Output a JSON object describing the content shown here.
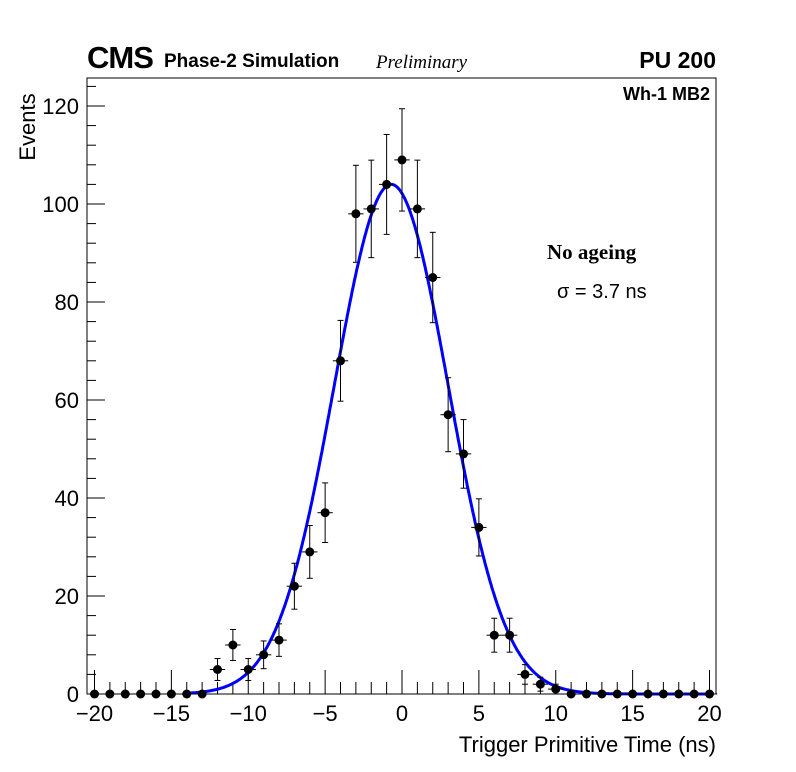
{
  "header": {
    "experiment": "CMS",
    "subtitle": "Phase-2 Simulation",
    "status": "Preliminary",
    "pileup": "PU 200",
    "station": "Wh-1 MB2"
  },
  "annotations": {
    "condition": "No ageing",
    "sigma": "σ = 3.7 ns"
  },
  "colors": {
    "fit": "#0000ff",
    "points": "#000000"
  },
  "chart_data": {
    "type": "scatter",
    "xlabel": "Trigger Primitive Time (ns)",
    "ylabel": "Events",
    "xlim": [
      -20,
      20
    ],
    "ylim": [
      0,
      126
    ],
    "xticks": [
      -20,
      -15,
      -10,
      -5,
      0,
      5,
      10,
      15,
      20
    ],
    "xtick_labels": [
      "−20",
      "−15",
      "−10",
      "−5",
      "0",
      "5",
      "10",
      "15",
      "20"
    ],
    "yticks": [
      0,
      20,
      40,
      60,
      80,
      100,
      120
    ],
    "ytick_labels": [
      "0",
      "20",
      "40",
      "60",
      "80",
      "100",
      "120"
    ],
    "x": [
      -20,
      -19,
      -18,
      -17,
      -16,
      -15,
      -14,
      -13,
      -12,
      -11,
      -10,
      -9,
      -8,
      -7,
      -6,
      -5,
      -4,
      -3,
      -2,
      -1,
      0,
      1,
      2,
      3,
      4,
      5,
      6,
      7,
      8,
      9,
      10,
      11,
      12,
      13,
      14,
      15,
      16,
      17,
      18,
      19,
      20
    ],
    "y": [
      0,
      0,
      0,
      0,
      0,
      0,
      0,
      0,
      5,
      10,
      5,
      8,
      11,
      22,
      29,
      37,
      68,
      98,
      99,
      104,
      109,
      99,
      85,
      57,
      49,
      34,
      12,
      12,
      4,
      2,
      1,
      0,
      0,
      0,
      0,
      0,
      0,
      0,
      0,
      0,
      0
    ],
    "fit": {
      "type": "gaussian",
      "amplitude": 104,
      "mean": -0.7,
      "sigma": 3.7,
      "range": [
        -14,
        20
      ]
    },
    "grid": false,
    "legend": "none"
  }
}
